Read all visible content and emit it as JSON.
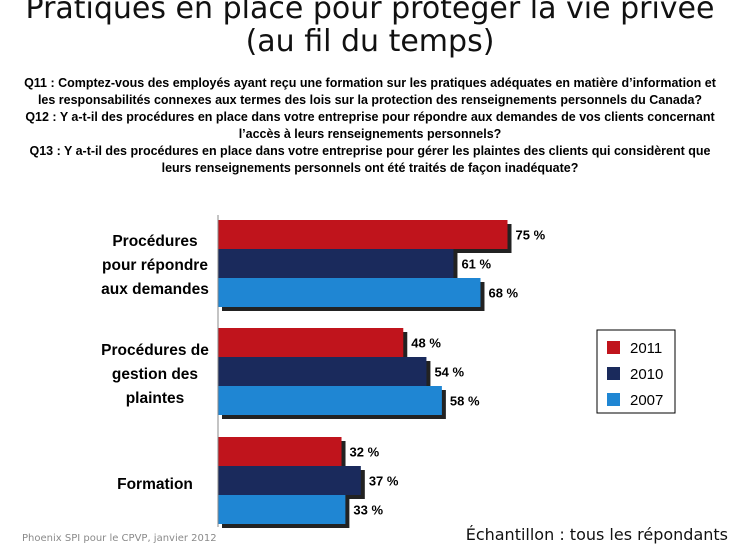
{
  "title": {
    "line1": "Pratiques en place pour protéger la vie privée",
    "line2": "(au fil du temps)"
  },
  "questions": [
    "Q11 : Comptez-vous des employés ayant reçu une formation sur les pratiques adéquates en matière d’information et les responsabilités connexes aux termes des lois sur la protection des renseignements personnels du Canada?",
    "Q12 : Y a-t-il des procédures en place dans votre entreprise pour répondre aux demandes de vos clients concernant l’accès à leurs renseignements personnels?",
    "Q13 : Y a-t-il des procédures en place dans votre entreprise pour gérer les plaintes des clients qui considèrent que leurs renseignements personnels ont été traités de façon inadéquate?"
  ],
  "chart_data": {
    "type": "bar",
    "orientation": "horizontal",
    "categories": [
      [
        "Procédures",
        "pour répondre",
        "aux demandes"
      ],
      [
        "Procédures de",
        "gestion des",
        "plaintes"
      ],
      [
        "Formation"
      ]
    ],
    "series": [
      {
        "name": "2011",
        "values": [
          75,
          48,
          32
        ],
        "labels": [
          "75 %",
          "48 %",
          "32 %"
        ],
        "color": "#c0141c"
      },
      {
        "name": "2010",
        "values": [
          61,
          54,
          37
        ],
        "labels": [
          "61 %",
          "54 %",
          "37 %"
        ],
        "color": "#1a2a5c"
      },
      {
        "name": "2007",
        "values": [
          68,
          58,
          33
        ],
        "labels": [
          "68 %",
          "58 %",
          "33 %"
        ],
        "color": "#1f86d3"
      }
    ],
    "xlim": [
      0,
      100
    ],
    "grid": false,
    "legend_position": "right"
  },
  "footer": {
    "source": "Phoenix SPI pour le CPVP, janvier 2012",
    "sample": "Échantillon : tous les répondants"
  }
}
